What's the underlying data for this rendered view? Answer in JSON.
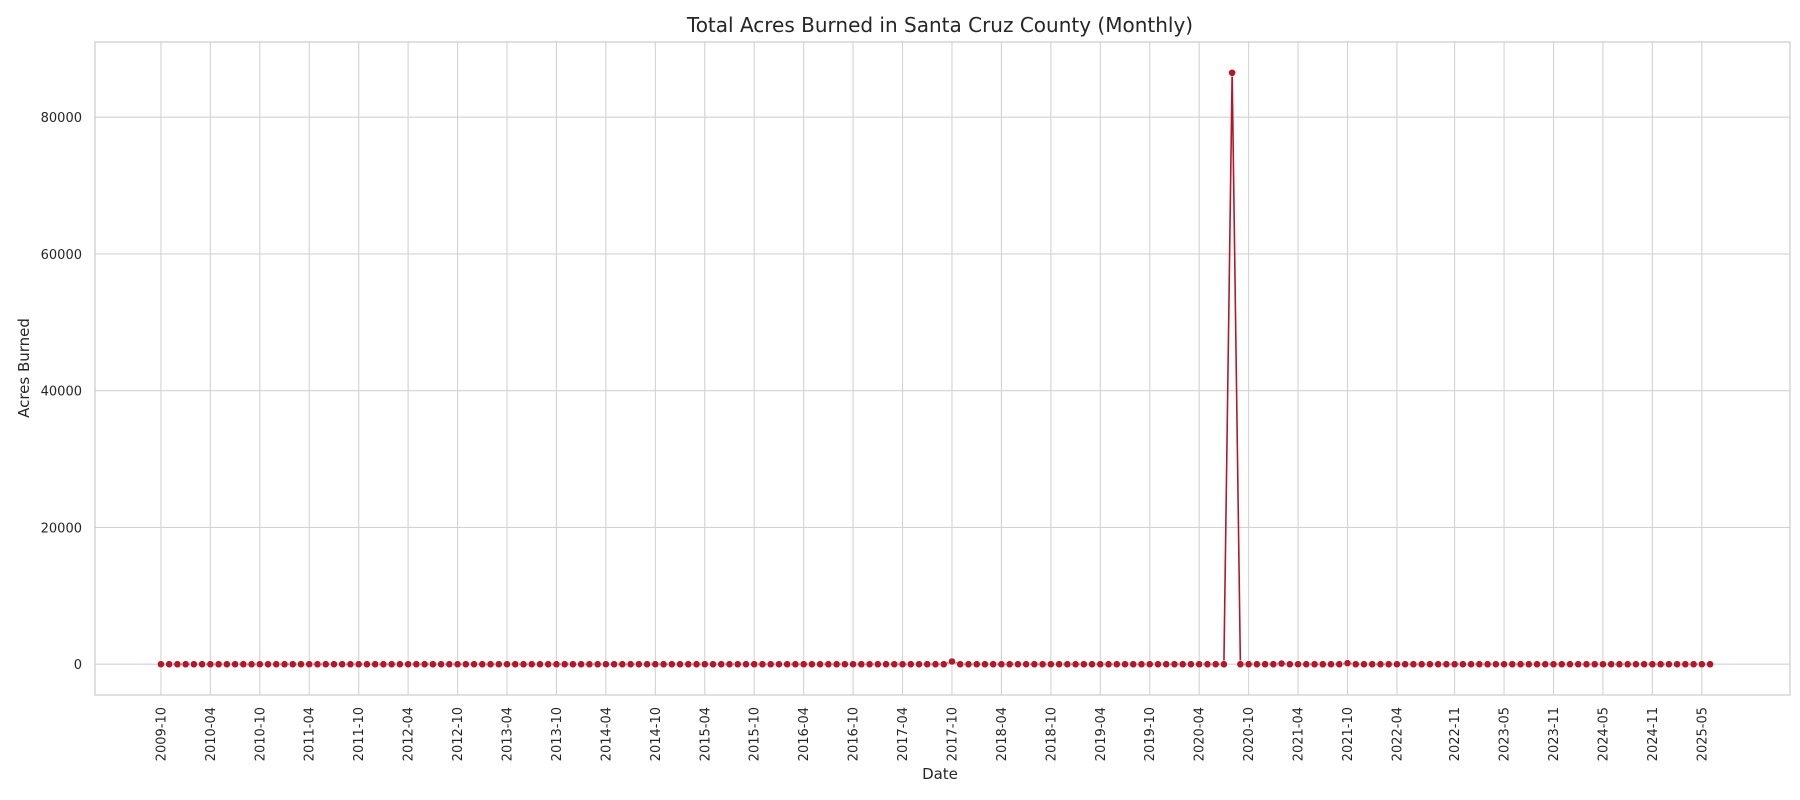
{
  "chart_data": {
    "type": "line",
    "title": "Total Acres Burned in Santa Cruz County (Monthly)",
    "xlabel": "Date",
    "ylabel": "Acres Burned",
    "ylim": [
      -4500,
      91000
    ],
    "yticks": [
      0,
      20000,
      40000,
      60000,
      80000
    ],
    "grid": true,
    "legend": "none",
    "series_color": "#b2182b",
    "start_month": "2009-10",
    "end_month": "2025-06",
    "xtick_labels": [
      "2009-10",
      "2010-04",
      "2010-10",
      "2011-04",
      "2011-10",
      "2012-04",
      "2012-10",
      "2013-04",
      "2013-10",
      "2014-04",
      "2014-10",
      "2015-04",
      "2015-10",
      "2016-04",
      "2016-10",
      "2017-04",
      "2017-10",
      "2018-04",
      "2018-10",
      "2019-04",
      "2019-10",
      "2020-04",
      "2020-10",
      "2021-04",
      "2021-10",
      "2022-04",
      "2022-11",
      "2023-05",
      "2023-11",
      "2024-05",
      "2024-11",
      "2025-05"
    ],
    "default_value": 0,
    "nonzero_values": [
      {
        "date": "2017-10",
        "value": 400
      },
      {
        "date": "2020-08",
        "value": 86500
      },
      {
        "date": "2021-02",
        "value": 100
      },
      {
        "date": "2021-10",
        "value": 150
      }
    ]
  }
}
